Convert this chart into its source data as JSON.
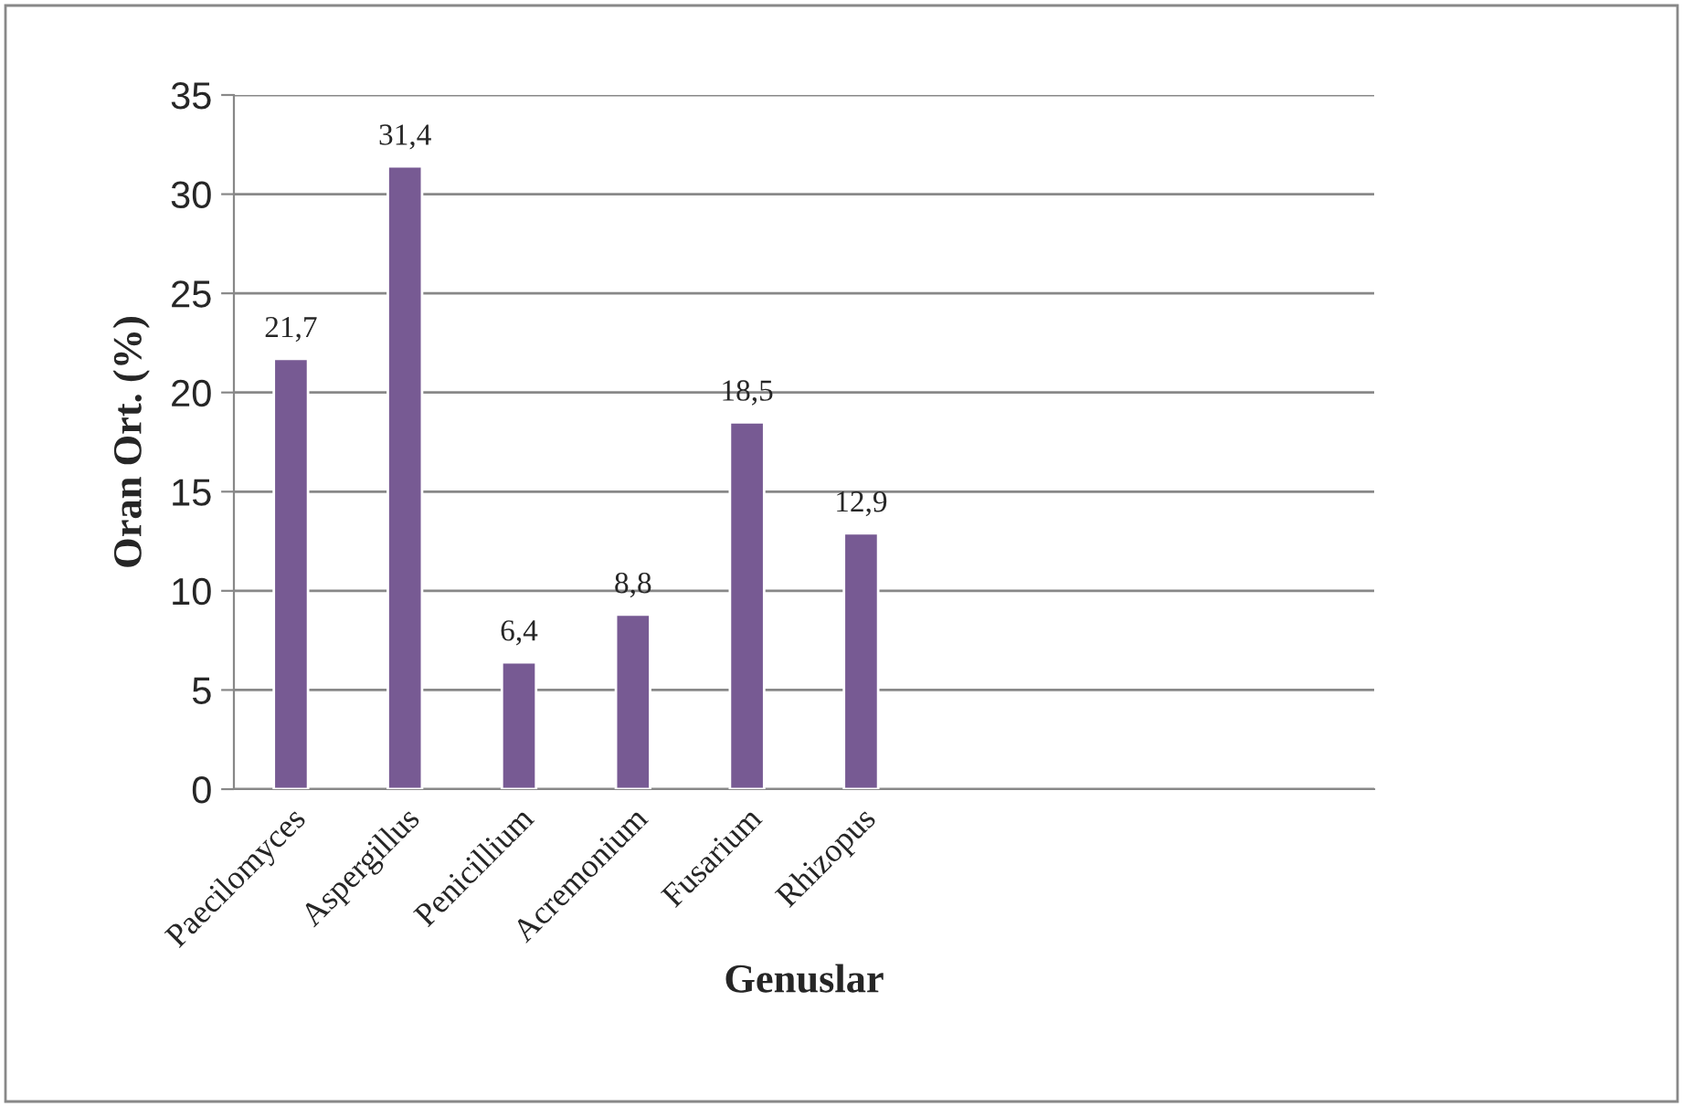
{
  "chart_data": {
    "type": "bar",
    "xlabel": "Genuslar",
    "ylabel": "Oran Ort. (%)",
    "categories": [
      "Paecilomyces",
      "Aspergillus",
      "Penicillium",
      "Acremonium",
      "Fusarium",
      "Rhizopus",
      null,
      null,
      null,
      null
    ],
    "values": [
      21.7,
      31.4,
      6.4,
      8.8,
      18.5,
      12.9,
      null,
      null,
      null,
      null
    ],
    "value_labels": [
      "21,7",
      "31,4",
      "6,4",
      "8,8",
      "18,5",
      "12,9",
      null,
      null,
      null,
      null
    ],
    "color": "#775a93",
    "ylim": [
      0,
      35
    ],
    "yticks": [
      0,
      5,
      10,
      15,
      20,
      25,
      30,
      35
    ],
    "grid": "y",
    "legend": false
  }
}
